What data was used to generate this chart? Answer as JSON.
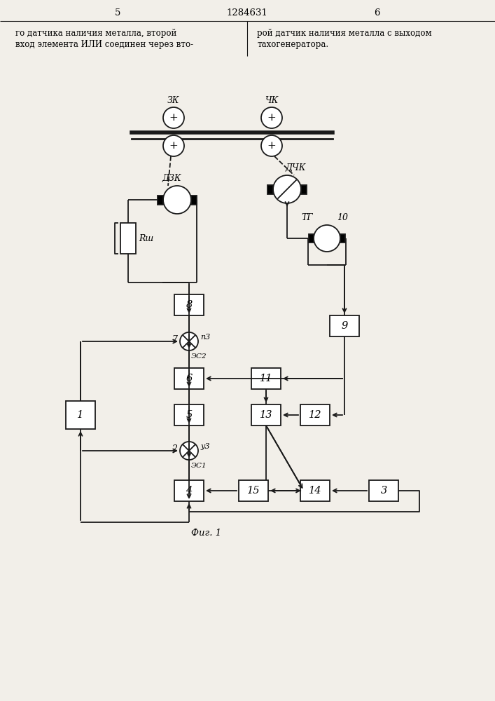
{
  "bg": "#f2efe9",
  "lc": "#1a1a1a",
  "header_title": "1284631",
  "page_l": "5",
  "page_r": "6",
  "txt1l": "го датчика наличия металла, второй",
  "txt2l": "вход элемента ИЛИ соединен через вто-",
  "txt1r": "рой датчик наличия металла с выходом",
  "txt2r": "тахогенератора.",
  "fig_cap": "Фиг. 1",
  "ZK": "ЗК",
  "ChK": "ЧК",
  "DZK": "ДЗК",
  "DChK": "ДЧК",
  "Rsh": "Rш",
  "TG": "ТГ",
  "b1": "1",
  "b2": "2",
  "b3": "3",
  "b4": "4",
  "b5": "5",
  "b6": "6",
  "b7": "7",
  "b8": "8",
  "b9": "9",
  "b10": "10",
  "b11": "11",
  "b12": "12",
  "b13": "13",
  "b14": "14",
  "b15": "15",
  "pz": "п3",
  "zs1": "ЭС1",
  "zs2": "ЭС2",
  "uz": "у3"
}
